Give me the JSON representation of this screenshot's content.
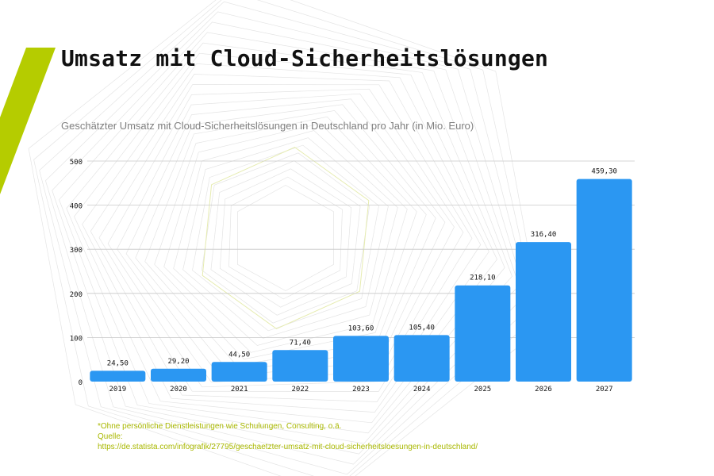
{
  "title": "Umsatz mit Cloud-Sicherheitslösungen",
  "subtitle": "Geschätzter Umsatz mit Cloud-Sicherheitslösungen in Deutschland pro Jahr (in Mio. Euro)",
  "footnote": {
    "note": "*Ohne persönliche Dienstleistungen wie Schulungen, Consulting, o.ä.",
    "source_label": "Quelle:",
    "source_url": "https://de.statista.com/infografik/27795/geschaetzter-umsatz-mit-cloud-sicherheitsloesungen-in-deutschland/"
  },
  "colors": {
    "bar": "#2b97f2",
    "accent": "#b5cc00",
    "grid": "#c8c8c8",
    "text": "#111111"
  },
  "chart_data": {
    "type": "bar",
    "categories": [
      "2019",
      "2020",
      "2021",
      "2022",
      "2023",
      "2024",
      "2025",
      "2026",
      "2027"
    ],
    "values": [
      24.5,
      29.2,
      44.5,
      71.4,
      103.6,
      105.4,
      218.1,
      316.4,
      459.3
    ],
    "data_labels": [
      "24,50",
      "29,20",
      "44,50",
      "71,40",
      "103,60",
      "105,40",
      "218,10",
      "316,40",
      "459,30"
    ],
    "yticks": [
      0,
      100,
      200,
      300,
      400,
      500
    ],
    "ylim": [
      0,
      500
    ],
    "grid": true,
    "xlabel": "",
    "ylabel": ""
  }
}
